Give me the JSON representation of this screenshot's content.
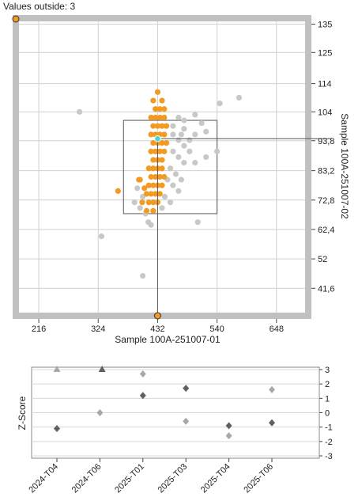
{
  "values_outside_label": "Values outside: 3",
  "colors": {
    "frame": "#c0c0c0",
    "grid": "#d0d0d0",
    "selected_point": "#f39a22",
    "other_point": "#c8c8c8",
    "target_point": "#44d8d0",
    "marker_fill": "#f39a22",
    "z_light": "#a8a8a8",
    "z_dark": "#606060"
  },
  "chart_data": [
    {
      "type": "scatter",
      "xlabel": "Sample 100A-251007-01",
      "ylabel": "Sample 100A-251007-02",
      "xlim": [
        180,
        700
      ],
      "ylim": [
        33,
        136
      ],
      "x_ticks": [
        "216",
        "324",
        "432",
        "540",
        "648"
      ],
      "y_ticks": [
        "135",
        "125",
        "114",
        "104",
        "93,8",
        "83,2",
        "72,8",
        "62,4",
        "52",
        "41,6"
      ],
      "target": {
        "x": 432,
        "y": 94.5
      },
      "range_box": {
        "x": [
          370,
          540
        ],
        "y": [
          68,
          101
        ]
      },
      "series": [
        {
          "role": "selected",
          "points": [
            [
              432,
              111
            ],
            [
              424,
              108
            ],
            [
              440,
              108
            ],
            [
              428,
              105
            ],
            [
              436,
              105
            ],
            [
              444,
              105
            ],
            [
              420,
              102
            ],
            [
              428,
              102
            ],
            [
              436,
              102
            ],
            [
              444,
              102
            ],
            [
              424,
              99
            ],
            [
              432,
              99
            ],
            [
              440,
              99
            ],
            [
              448,
              99
            ],
            [
              420,
              96
            ],
            [
              428,
              96
            ],
            [
              436,
              96
            ],
            [
              444,
              96
            ],
            [
              424,
              93
            ],
            [
              432,
              93
            ],
            [
              440,
              93
            ],
            [
              448,
              93
            ],
            [
              420,
              90
            ],
            [
              428,
              90
            ],
            [
              436,
              90
            ],
            [
              444,
              90
            ],
            [
              424,
              87
            ],
            [
              432,
              87
            ],
            [
              440,
              87
            ],
            [
              416,
              84
            ],
            [
              424,
              84
            ],
            [
              432,
              84
            ],
            [
              440,
              84
            ],
            [
              420,
              81
            ],
            [
              428,
              81
            ],
            [
              436,
              81
            ],
            [
              444,
              81
            ],
            [
              416,
              78
            ],
            [
              424,
              78
            ],
            [
              432,
              78
            ],
            [
              440,
              78
            ],
            [
              412,
              75
            ],
            [
              420,
              75
            ],
            [
              428,
              75
            ],
            [
              436,
              75
            ],
            [
              404,
              72
            ],
            [
              416,
              72
            ],
            [
              424,
              72
            ],
            [
              432,
              72
            ],
            [
              412,
              69
            ],
            [
              424,
              69
            ],
            [
              400,
              80
            ],
            [
              408,
              77
            ],
            [
              360,
              76
            ],
            [
              398,
              80
            ]
          ]
        },
        {
          "role": "other",
          "points": [
            [
              290,
              104
            ],
            [
              580,
              109
            ],
            [
              545,
              107
            ],
            [
              500,
              103
            ],
            [
              512,
              100
            ],
            [
              520,
              97
            ],
            [
              470,
              102
            ],
            [
              480,
              98
            ],
            [
              460,
              96
            ],
            [
              470,
              94
            ],
            [
              480,
              92
            ],
            [
              490,
              90
            ],
            [
              460,
              90
            ],
            [
              470,
              88
            ],
            [
              480,
              86
            ],
            [
              500,
              86
            ],
            [
              520,
              88
            ],
            [
              540,
              90
            ],
            [
              455,
              84
            ],
            [
              465,
              82
            ],
            [
              475,
              80
            ],
            [
              450,
              80
            ],
            [
              460,
              78
            ],
            [
              470,
              76
            ],
            [
              445,
              74
            ],
            [
              455,
              72
            ],
            [
              440,
              70
            ],
            [
              395,
              77
            ],
            [
              405,
              74
            ],
            [
              390,
              72
            ],
            [
              400,
              70
            ],
            [
              410,
              68
            ],
            [
              415,
              65
            ],
            [
              505,
              65
            ],
            [
              420,
              64
            ],
            [
              330,
              60
            ],
            [
              405,
              46
            ],
            [
              460,
              99
            ],
            [
              480,
              101
            ],
            [
              500,
              96
            ],
            [
              490,
              94
            ],
            [
              475,
              96
            ]
          ]
        }
      ]
    },
    {
      "type": "scatter",
      "ylabel": "Z-Score",
      "categories": [
        "2024-T04",
        "2024-T06",
        "2025-T01",
        "2025-T03",
        "2025-T04",
        "2025-T06"
      ],
      "ylim": [
        -3,
        3
      ],
      "y_ticks": [
        "3",
        "2",
        "1",
        "0",
        "-1",
        "-2",
        "-3"
      ],
      "series": [
        {
          "role": "light",
          "marker": "triangle",
          "points": [
            [
              0,
              3
            ]
          ]
        },
        {
          "role": "dark",
          "marker": "triangle",
          "points": [
            [
              1.05,
              3
            ]
          ]
        },
        {
          "role": "light",
          "marker": "diamond",
          "points": [
            [
              1,
              0
            ],
            [
              2,
              2.7
            ],
            [
              3,
              -0.6
            ],
            [
              4,
              -1.6
            ],
            [
              5,
              1.6
            ]
          ]
        },
        {
          "role": "dark",
          "marker": "diamond",
          "points": [
            [
              0,
              -1.1
            ],
            [
              2,
              1.2
            ],
            [
              3,
              1.7
            ],
            [
              4,
              -0.9
            ],
            [
              5,
              -0.7
            ]
          ]
        }
      ]
    }
  ]
}
